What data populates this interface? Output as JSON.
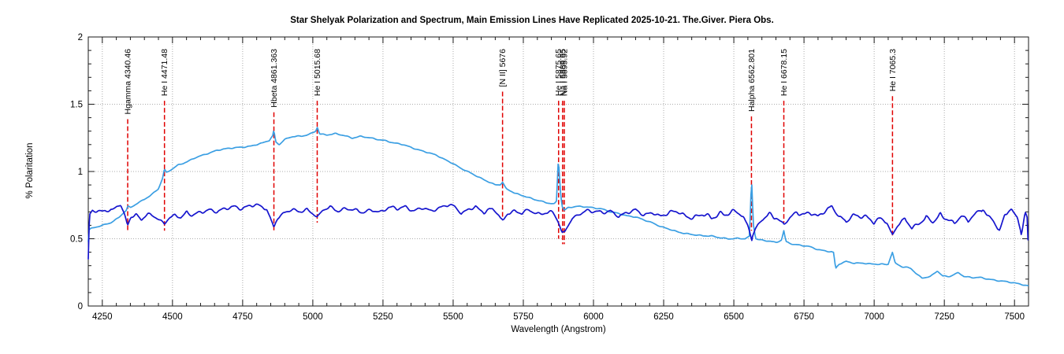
{
  "title": "Star Shelyak Polarization and Spectrum, Main Emission Lines Have Replicated 2025-10-21. The.Giver. Piera Obs.",
  "chart_data": {
    "type": "line",
    "title": "Star Shelyak Polarization and Spectrum, Main Emission Lines Have Replicated 2025-10-21. The.Giver. Piera Obs.",
    "xlabel": "Wavelength (Angstrom)",
    "ylabel": "% Polaritation",
    "xlim": [
      4200,
      7550
    ],
    "ylim": [
      0,
      2
    ],
    "x_tick_labels": [
      "4250",
      "4500",
      "4750",
      "5000",
      "5250",
      "5500",
      "5750",
      "6000",
      "6250",
      "6500",
      "6750",
      "7000",
      "7250",
      "7500"
    ],
    "x_major_ticks": [
      4250,
      4500,
      4750,
      5000,
      5250,
      5500,
      5750,
      6000,
      6250,
      6500,
      6750,
      7000,
      7250,
      7500
    ],
    "y_tick_labels": [
      "0",
      "0.5",
      "1",
      "1.5",
      "2"
    ],
    "y_major_ticks": [
      0,
      0.5,
      1,
      1.5,
      2
    ],
    "x_minor_step": 50,
    "y_minor_step": 0.1,
    "grid": "dotted-at-major-ticks",
    "legend_position": "none",
    "colors": {
      "spectrum": "#3B9FE3",
      "polarization": "#1615CE",
      "emission_line": "#E00000",
      "grid": "#ABABAB",
      "frame": "#1a1a1a",
      "text": "#000000"
    },
    "emission_lines": [
      {
        "label": "Hgamma 4340.46",
        "wavelength": 4340.46,
        "line_end": 0.56
      },
      {
        "label": "He I 4471.48",
        "wavelength": 4471.48,
        "line_end": 0.56
      },
      {
        "label": "Hbeta 4861.363",
        "wavelength": 4861.363,
        "line_end": 0.55
      },
      {
        "label": "He I 5015.68",
        "wavelength": 5015.68,
        "line_end": 0.62
      },
      {
        "label": "[N II] 5676",
        "wavelength": 5676,
        "line_end": 0.66
      },
      {
        "label": "He I 5875.65",
        "wavelength": 5875.65,
        "line_end": 0.5
      },
      {
        "label": "Na I 5889.95",
        "wavelength": 5889.95,
        "line_end": 0.46
      },
      {
        "label": "Na I 5895.92",
        "wavelength": 5895.92,
        "line_end": 0.46
      },
      {
        "label": "Halpha 6562.801",
        "wavelength": 6562.801,
        "line_end": 0.56
      },
      {
        "label": "He I 6678.15",
        "wavelength": 6678.15,
        "line_end": 0.62
      },
      {
        "label": "He I 7065.3",
        "wavelength": 7065.3,
        "line_end": 0.52
      }
    ],
    "series": [
      {
        "name": "spectrum",
        "color": "#3B9FE3",
        "anchors": [
          [
            4200,
            0.48
          ],
          [
            4203,
            0.57
          ],
          [
            4220,
            0.58
          ],
          [
            4250,
            0.6
          ],
          [
            4280,
            0.62
          ],
          [
            4310,
            0.66
          ],
          [
            4335,
            0.71
          ],
          [
            4341,
            0.74
          ],
          [
            4350,
            0.73
          ],
          [
            4380,
            0.77
          ],
          [
            4420,
            0.82
          ],
          [
            4450,
            0.87
          ],
          [
            4465,
            0.95
          ],
          [
            4471,
            1.02
          ],
          [
            4478,
            0.99
          ],
          [
            4500,
            1.02
          ],
          [
            4520,
            1.05
          ],
          [
            4550,
            1.07
          ],
          [
            4580,
            1.1
          ],
          [
            4620,
            1.13
          ],
          [
            4660,
            1.16
          ],
          [
            4700,
            1.17
          ],
          [
            4740,
            1.18
          ],
          [
            4780,
            1.19
          ],
          [
            4820,
            1.21
          ],
          [
            4845,
            1.23
          ],
          [
            4858,
            1.27
          ],
          [
            4861,
            1.31
          ],
          [
            4868,
            1.22
          ],
          [
            4880,
            1.2
          ],
          [
            4900,
            1.24
          ],
          [
            4930,
            1.26
          ],
          [
            4960,
            1.26
          ],
          [
            4990,
            1.28
          ],
          [
            5010,
            1.3
          ],
          [
            5016,
            1.33
          ],
          [
            5024,
            1.28
          ],
          [
            5050,
            1.27
          ],
          [
            5080,
            1.28
          ],
          [
            5110,
            1.27
          ],
          [
            5140,
            1.25
          ],
          [
            5170,
            1.26
          ],
          [
            5200,
            1.25
          ],
          [
            5230,
            1.24
          ],
          [
            5260,
            1.23
          ],
          [
            5290,
            1.21
          ],
          [
            5320,
            1.2
          ],
          [
            5350,
            1.18
          ],
          [
            5380,
            1.16
          ],
          [
            5410,
            1.14
          ],
          [
            5440,
            1.12
          ],
          [
            5470,
            1.09
          ],
          [
            5500,
            1.06
          ],
          [
            5530,
            1.02
          ],
          [
            5560,
            0.99
          ],
          [
            5590,
            0.96
          ],
          [
            5620,
            0.93
          ],
          [
            5650,
            0.9
          ],
          [
            5668,
            0.9
          ],
          [
            5676,
            0.92
          ],
          [
            5690,
            0.87
          ],
          [
            5720,
            0.84
          ],
          [
            5750,
            0.82
          ],
          [
            5790,
            0.79
          ],
          [
            5830,
            0.77
          ],
          [
            5860,
            0.76
          ],
          [
            5868,
            0.78
          ],
          [
            5875,
            1.1
          ],
          [
            5882,
            0.86
          ],
          [
            5888,
            0.74
          ],
          [
            5896,
            0.71
          ],
          [
            5910,
            0.73
          ],
          [
            5940,
            0.74
          ],
          [
            5970,
            0.74
          ],
          [
            6000,
            0.73
          ],
          [
            6030,
            0.72
          ],
          [
            6060,
            0.7
          ],
          [
            6090,
            0.69
          ],
          [
            6120,
            0.67
          ],
          [
            6150,
            0.66
          ],
          [
            6180,
            0.64
          ],
          [
            6210,
            0.62
          ],
          [
            6240,
            0.59
          ],
          [
            6270,
            0.57
          ],
          [
            6300,
            0.55
          ],
          [
            6330,
            0.54
          ],
          [
            6360,
            0.53
          ],
          [
            6390,
            0.52
          ],
          [
            6420,
            0.52
          ],
          [
            6450,
            0.51
          ],
          [
            6480,
            0.5
          ],
          [
            6510,
            0.5
          ],
          [
            6540,
            0.5
          ],
          [
            6556,
            0.52
          ],
          [
            6563,
            0.95
          ],
          [
            6570,
            0.6
          ],
          [
            6578,
            0.5
          ],
          [
            6600,
            0.49
          ],
          [
            6630,
            0.48
          ],
          [
            6650,
            0.47
          ],
          [
            6670,
            0.49
          ],
          [
            6678,
            0.56
          ],
          [
            6686,
            0.48
          ],
          [
            6710,
            0.46
          ],
          [
            6740,
            0.45
          ],
          [
            6770,
            0.44
          ],
          [
            6800,
            0.42
          ],
          [
            6830,
            0.41
          ],
          [
            6855,
            0.4
          ],
          [
            6863,
            0.28
          ],
          [
            6875,
            0.31
          ],
          [
            6900,
            0.33
          ],
          [
            6930,
            0.32
          ],
          [
            6960,
            0.32
          ],
          [
            6990,
            0.31
          ],
          [
            7020,
            0.31
          ],
          [
            7050,
            0.31
          ],
          [
            7065,
            0.4
          ],
          [
            7075,
            0.32
          ],
          [
            7100,
            0.29
          ],
          [
            7130,
            0.28
          ],
          [
            7150,
            0.24
          ],
          [
            7170,
            0.21
          ],
          [
            7200,
            0.22
          ],
          [
            7225,
            0.26
          ],
          [
            7245,
            0.22
          ],
          [
            7270,
            0.22
          ],
          [
            7300,
            0.25
          ],
          [
            7320,
            0.22
          ],
          [
            7350,
            0.21
          ],
          [
            7380,
            0.21
          ],
          [
            7410,
            0.2
          ],
          [
            7440,
            0.19
          ],
          [
            7470,
            0.18
          ],
          [
            7500,
            0.17
          ],
          [
            7530,
            0.16
          ],
          [
            7550,
            0.15
          ]
        ]
      },
      {
        "name": "polarization",
        "color": "#1615CE",
        "anchors": [
          [
            4200,
            0.35
          ],
          [
            4204,
            0.68
          ],
          [
            4215,
            0.71
          ],
          [
            4240,
            0.7
          ],
          [
            4260,
            0.72
          ],
          [
            4285,
            0.71
          ],
          [
            4300,
            0.74
          ],
          [
            4315,
            0.75
          ],
          [
            4330,
            0.68
          ],
          [
            4340,
            0.6
          ],
          [
            4352,
            0.66
          ],
          [
            4370,
            0.68
          ],
          [
            4390,
            0.65
          ],
          [
            4410,
            0.68
          ],
          [
            4430,
            0.67
          ],
          [
            4450,
            0.64
          ],
          [
            4471,
            0.61
          ],
          [
            4490,
            0.66
          ],
          [
            4510,
            0.68
          ],
          [
            4530,
            0.66
          ],
          [
            4550,
            0.69
          ],
          [
            4570,
            0.67
          ],
          [
            4600,
            0.7
          ],
          [
            4630,
            0.72
          ],
          [
            4660,
            0.7
          ],
          [
            4690,
            0.72
          ],
          [
            4720,
            0.74
          ],
          [
            4750,
            0.73
          ],
          [
            4780,
            0.75
          ],
          [
            4810,
            0.74
          ],
          [
            4835,
            0.72
          ],
          [
            4848,
            0.66
          ],
          [
            4861,
            0.59
          ],
          [
            4875,
            0.65
          ],
          [
            4895,
            0.69
          ],
          [
            4920,
            0.71
          ],
          [
            4950,
            0.7
          ],
          [
            4980,
            0.72
          ],
          [
            5000,
            0.69
          ],
          [
            5016,
            0.66
          ],
          [
            5035,
            0.71
          ],
          [
            5060,
            0.73
          ],
          [
            5090,
            0.71
          ],
          [
            5120,
            0.73
          ],
          [
            5150,
            0.71
          ],
          [
            5180,
            0.69
          ],
          [
            5210,
            0.72
          ],
          [
            5240,
            0.7
          ],
          [
            5270,
            0.73
          ],
          [
            5300,
            0.72
          ],
          [
            5330,
            0.74
          ],
          [
            5360,
            0.71
          ],
          [
            5390,
            0.73
          ],
          [
            5420,
            0.7
          ],
          [
            5450,
            0.73
          ],
          [
            5480,
            0.76
          ],
          [
            5505,
            0.74
          ],
          [
            5530,
            0.68
          ],
          [
            5555,
            0.72
          ],
          [
            5580,
            0.74
          ],
          [
            5610,
            0.7
          ],
          [
            5640,
            0.72
          ],
          [
            5660,
            0.68
          ],
          [
            5676,
            0.63
          ],
          [
            5695,
            0.69
          ],
          [
            5720,
            0.71
          ],
          [
            5745,
            0.69
          ],
          [
            5770,
            0.71
          ],
          [
            5800,
            0.68
          ],
          [
            5830,
            0.7
          ],
          [
            5855,
            0.7
          ],
          [
            5875,
            0.62
          ],
          [
            5891,
            0.53
          ],
          [
            5905,
            0.58
          ],
          [
            5925,
            0.65
          ],
          [
            5950,
            0.69
          ],
          [
            5975,
            0.71
          ],
          [
            6000,
            0.7
          ],
          [
            6030,
            0.69
          ],
          [
            6060,
            0.71
          ],
          [
            6090,
            0.67
          ],
          [
            6120,
            0.69
          ],
          [
            6150,
            0.71
          ],
          [
            6180,
            0.68
          ],
          [
            6210,
            0.7
          ],
          [
            6240,
            0.66
          ],
          [
            6270,
            0.69
          ],
          [
            6300,
            0.71
          ],
          [
            6330,
            0.67
          ],
          [
            6360,
            0.65
          ],
          [
            6390,
            0.68
          ],
          [
            6420,
            0.66
          ],
          [
            6450,
            0.69
          ],
          [
            6480,
            0.68
          ],
          [
            6510,
            0.7
          ],
          [
            6535,
            0.66
          ],
          [
            6550,
            0.6
          ],
          [
            6563,
            0.5
          ],
          [
            6578,
            0.58
          ],
          [
            6600,
            0.64
          ],
          [
            6625,
            0.67
          ],
          [
            6650,
            0.66
          ],
          [
            6678,
            0.61
          ],
          [
            6700,
            0.66
          ],
          [
            6725,
            0.69
          ],
          [
            6750,
            0.67
          ],
          [
            6775,
            0.7
          ],
          [
            6800,
            0.67
          ],
          [
            6825,
            0.71
          ],
          [
            6850,
            0.73
          ],
          [
            6875,
            0.66
          ],
          [
            6900,
            0.63
          ],
          [
            6925,
            0.68
          ],
          [
            6950,
            0.67
          ],
          [
            6975,
            0.65
          ],
          [
            7000,
            0.62
          ],
          [
            7025,
            0.66
          ],
          [
            7045,
            0.62
          ],
          [
            7065,
            0.53
          ],
          [
            7085,
            0.6
          ],
          [
            7110,
            0.64
          ],
          [
            7135,
            0.58
          ],
          [
            7160,
            0.62
          ],
          [
            7185,
            0.66
          ],
          [
            7210,
            0.62
          ],
          [
            7235,
            0.67
          ],
          [
            7260,
            0.65
          ],
          [
            7285,
            0.62
          ],
          [
            7310,
            0.67
          ],
          [
            7335,
            0.63
          ],
          [
            7360,
            0.68
          ],
          [
            7385,
            0.73
          ],
          [
            7400,
            0.68
          ],
          [
            7420,
            0.65
          ],
          [
            7445,
            0.55
          ],
          [
            7465,
            0.68
          ],
          [
            7490,
            0.71
          ],
          [
            7510,
            0.66
          ],
          [
            7525,
            0.53
          ],
          [
            7538,
            0.7
          ],
          [
            7545,
            0.66
          ],
          [
            7550,
            0.38
          ]
        ]
      }
    ]
  }
}
